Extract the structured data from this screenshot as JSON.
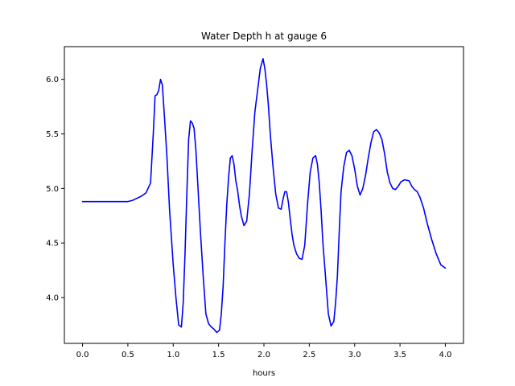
{
  "chart_data": {
    "type": "line",
    "title": "Water Depth h at gauge 6",
    "xlabel": "hours",
    "ylabel": "",
    "xlim": [
      -0.2,
      4.2
    ],
    "ylim": [
      3.58,
      6.3
    ],
    "x_ticks": [
      0.0,
      0.5,
      1.0,
      1.5,
      2.0,
      2.5,
      3.0,
      3.5,
      4.0
    ],
    "x_tick_labels": [
      "0.0",
      "0.5",
      "1.0",
      "1.5",
      "2.0",
      "2.5",
      "3.0",
      "3.5",
      "4.0"
    ],
    "y_ticks": [
      4.0,
      4.5,
      5.0,
      5.5,
      6.0
    ],
    "y_tick_labels": [
      "4.0",
      "4.5",
      "5.0",
      "5.5",
      "6.0"
    ],
    "grid": false,
    "colors": {
      "line": "#0000ff"
    },
    "series": [
      {
        "x": [
          0.0,
          0.1,
          0.2,
          0.3,
          0.4,
          0.5,
          0.55,
          0.6,
          0.65,
          0.7,
          0.75,
          0.78,
          0.8,
          0.82,
          0.84,
          0.86,
          0.88,
          0.9,
          0.93,
          0.96,
          1.0,
          1.03,
          1.06,
          1.09,
          1.11,
          1.13,
          1.15,
          1.17,
          1.19,
          1.21,
          1.23,
          1.25,
          1.27,
          1.3,
          1.33,
          1.36,
          1.39,
          1.42,
          1.45,
          1.48,
          1.51,
          1.53,
          1.55,
          1.57,
          1.59,
          1.61,
          1.63,
          1.65,
          1.67,
          1.69,
          1.71,
          1.73,
          1.75,
          1.78,
          1.81,
          1.84,
          1.87,
          1.9,
          1.93,
          1.96,
          1.99,
          2.01,
          2.03,
          2.05,
          2.07,
          2.1,
          2.13,
          2.16,
          2.19,
          2.21,
          2.23,
          2.25,
          2.27,
          2.29,
          2.31,
          2.33,
          2.36,
          2.39,
          2.42,
          2.45,
          2.48,
          2.51,
          2.54,
          2.57,
          2.59,
          2.61,
          2.63,
          2.65,
          2.68,
          2.71,
          2.74,
          2.77,
          2.79,
          2.81,
          2.83,
          2.85,
          2.88,
          2.91,
          2.94,
          2.97,
          3.0,
          3.03,
          3.06,
          3.09,
          3.12,
          3.15,
          3.18,
          3.21,
          3.24,
          3.27,
          3.3,
          3.33,
          3.36,
          3.39,
          3.42,
          3.45,
          3.48,
          3.51,
          3.55,
          3.6,
          3.63,
          3.66,
          3.69,
          3.72,
          3.76,
          3.8,
          3.85,
          3.9,
          3.95,
          4.0
        ],
        "y": [
          4.88,
          4.88,
          4.88,
          4.88,
          4.88,
          4.88,
          4.89,
          4.91,
          4.93,
          4.96,
          5.05,
          5.5,
          5.85,
          5.86,
          5.9,
          6.0,
          5.95,
          5.7,
          5.3,
          4.8,
          4.3,
          4.0,
          3.75,
          3.73,
          3.95,
          4.4,
          4.95,
          5.45,
          5.62,
          5.6,
          5.55,
          5.35,
          5.05,
          4.6,
          4.2,
          3.85,
          3.76,
          3.73,
          3.71,
          3.68,
          3.7,
          3.85,
          4.1,
          4.5,
          4.85,
          5.1,
          5.28,
          5.3,
          5.22,
          5.07,
          4.98,
          4.85,
          4.75,
          4.66,
          4.7,
          4.95,
          5.35,
          5.7,
          5.9,
          6.1,
          6.19,
          6.1,
          5.95,
          5.75,
          5.5,
          5.2,
          4.95,
          4.82,
          4.81,
          4.9,
          4.97,
          4.97,
          4.87,
          4.72,
          4.58,
          4.48,
          4.4,
          4.36,
          4.35,
          4.48,
          4.85,
          5.15,
          5.28,
          5.3,
          5.22,
          5.05,
          4.8,
          4.5,
          4.18,
          3.85,
          3.74,
          3.78,
          3.95,
          4.2,
          4.6,
          4.97,
          5.2,
          5.33,
          5.35,
          5.3,
          5.18,
          5.02,
          4.94,
          5.0,
          5.12,
          5.28,
          5.42,
          5.52,
          5.54,
          5.51,
          5.45,
          5.32,
          5.15,
          5.05,
          5.0,
          4.99,
          5.02,
          5.06,
          5.08,
          5.07,
          5.02,
          4.99,
          4.97,
          4.92,
          4.82,
          4.68,
          4.53,
          4.4,
          4.3,
          4.27
        ]
      }
    ]
  }
}
